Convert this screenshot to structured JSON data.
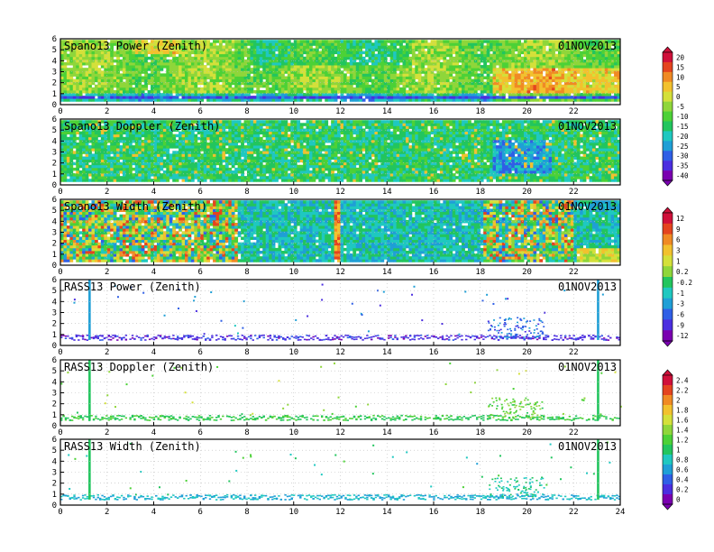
{
  "chart_data": [
    {
      "type": "heatmap",
      "title": "Spano13 Power (Zenith)",
      "date": "01NOV2013",
      "x_ticks": [
        "0",
        "2",
        "4",
        "6",
        "8",
        "10",
        "12",
        "14",
        "16",
        "18",
        "20",
        "22"
      ],
      "y_ticks": [
        "0",
        "1",
        "2",
        "3",
        "4",
        "5",
        "6"
      ],
      "xlim": [
        0,
        24
      ],
      "ylim": [
        0,
        6
      ],
      "grid": true,
      "colorbar": {
        "ticks": [
          "20",
          "15",
          "10",
          "5",
          "0",
          "-5",
          "-10",
          "-15",
          "-20",
          "-25",
          "-30",
          "-35",
          "-40"
        ],
        "range": [
          -40,
          20
        ]
      }
    },
    {
      "type": "heatmap",
      "title": "Spano13 Doppler (Zenith)",
      "date": "01NOV2013",
      "x_ticks": [
        "0",
        "2",
        "4",
        "6",
        "8",
        "10",
        "12",
        "14",
        "16",
        "18",
        "20",
        "22"
      ],
      "y_ticks": [
        "0",
        "1",
        "2",
        "3",
        "4",
        "5",
        "6"
      ],
      "xlim": [
        0,
        24
      ],
      "ylim": [
        0,
        6
      ],
      "grid": true
    },
    {
      "type": "heatmap",
      "title": "Spano13 Width (Zenith)",
      "date": "01NOV2013",
      "x_ticks": [
        "0",
        "2",
        "4",
        "6",
        "8",
        "10",
        "12",
        "14",
        "16",
        "18",
        "20",
        "22"
      ],
      "y_ticks": [
        "0",
        "1",
        "2",
        "3",
        "4",
        "5",
        "6"
      ],
      "xlim": [
        0,
        24
      ],
      "ylim": [
        0,
        6
      ],
      "grid": true,
      "colorbar": {
        "ticks": [
          "12",
          "9",
          "6",
          "3",
          "1",
          "0.2",
          "-0.2",
          "-1",
          "-3",
          "-6",
          "-9",
          "-12"
        ],
        "range": [
          -12,
          12
        ]
      }
    },
    {
      "type": "heatmap",
      "title": "RASS13 Power (Zenith)",
      "date": "01NOV2013",
      "x_ticks": [
        "0",
        "2",
        "4",
        "6",
        "8",
        "10",
        "12",
        "14",
        "16",
        "18",
        "20",
        "22"
      ],
      "y_ticks": [
        "0",
        "1",
        "2",
        "3",
        "4",
        "5",
        "6"
      ],
      "xlim": [
        0,
        24
      ],
      "ylim": [
        0,
        6
      ],
      "grid": true
    },
    {
      "type": "heatmap",
      "title": "RASS13 Doppler (Zenith)",
      "date": "01NOV2013",
      "x_ticks": [
        "0",
        "2",
        "4",
        "6",
        "8",
        "10",
        "12",
        "14",
        "16",
        "18",
        "20",
        "22"
      ],
      "y_ticks": [
        "0",
        "1",
        "2",
        "3",
        "4",
        "5",
        "6"
      ],
      "xlim": [
        0,
        24
      ],
      "ylim": [
        0,
        6
      ],
      "grid": true,
      "colorbar": {
        "ticks": [
          "2.4",
          "2.2",
          "2",
          "1.8",
          "1.6",
          "1.4",
          "1.2",
          "1",
          "0.8",
          "0.6",
          "0.4",
          "0.2",
          "0"
        ],
        "range": [
          0,
          2.4
        ]
      }
    },
    {
      "type": "heatmap",
      "title": "RASS13 Width (Zenith)",
      "date": "01NOV2013",
      "x_ticks": [
        "0",
        "2",
        "4",
        "6",
        "8",
        "10",
        "12",
        "14",
        "16",
        "18",
        "20",
        "22",
        "24"
      ],
      "y_ticks": [
        "0",
        "1",
        "2",
        "3",
        "4",
        "5",
        "6"
      ],
      "xlim": [
        0,
        24
      ],
      "ylim": [
        0,
        6
      ],
      "grid": true
    }
  ],
  "colormaps": {
    "spectral": [
      "#7a00b0",
      "#4b2ee0",
      "#2f5fe6",
      "#1f9fd6",
      "#1fc8c0",
      "#22c55e",
      "#4cd137",
      "#8fd63a",
      "#d4e03a",
      "#f2c12e",
      "#f08a24",
      "#e4441f",
      "#d0103a"
    ]
  }
}
